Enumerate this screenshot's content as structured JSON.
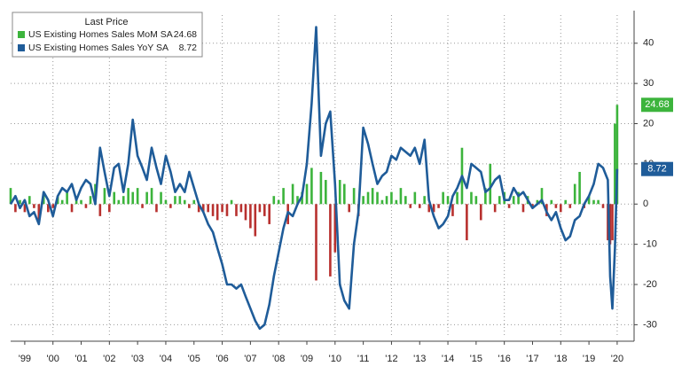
{
  "chart_data": {
    "type": "bar_line",
    "legend_title": "Last Price",
    "x": [
      1999.0,
      1999.17,
      1999.33,
      1999.5,
      1999.67,
      1999.83,
      2000.0,
      2000.17,
      2000.33,
      2000.5,
      2000.67,
      2000.83,
      2001.0,
      2001.17,
      2001.33,
      2001.5,
      2001.67,
      2001.83,
      2002.0,
      2002.17,
      2002.33,
      2002.5,
      2002.67,
      2002.83,
      2003.0,
      2003.17,
      2003.33,
      2003.5,
      2003.67,
      2003.83,
      2004.0,
      2004.17,
      2004.33,
      2004.5,
      2004.67,
      2004.83,
      2005.0,
      2005.17,
      2005.33,
      2005.5,
      2005.67,
      2005.83,
      2006.0,
      2006.17,
      2006.33,
      2006.5,
      2006.67,
      2006.83,
      2007.0,
      2007.17,
      2007.33,
      2007.5,
      2007.67,
      2007.83,
      2008.0,
      2008.17,
      2008.33,
      2008.5,
      2008.67,
      2008.83,
      2009.0,
      2009.17,
      2009.33,
      2009.5,
      2009.67,
      2009.83,
      2010.0,
      2010.17,
      2010.33,
      2010.5,
      2010.67,
      2010.83,
      2011.0,
      2011.17,
      2011.33,
      2011.5,
      2011.67,
      2011.83,
      2012.0,
      2012.17,
      2012.33,
      2012.5,
      2012.67,
      2012.83,
      2013.0,
      2013.17,
      2013.33,
      2013.5,
      2013.67,
      2013.83,
      2014.0,
      2014.17,
      2014.33,
      2014.5,
      2014.67,
      2014.83,
      2015.0,
      2015.17,
      2015.33,
      2015.5,
      2015.67,
      2015.83,
      2016.0,
      2016.17,
      2016.33,
      2016.5,
      2016.67,
      2016.83,
      2017.0,
      2017.17,
      2017.33,
      2017.5,
      2017.67,
      2017.83,
      2018.0,
      2018.17,
      2018.33,
      2018.5,
      2018.67,
      2018.83,
      2019.0,
      2019.17,
      2019.33,
      2019.5,
      2019.67,
      2019.83,
      2020.0,
      2020.17,
      2020.25,
      2020.33,
      2020.42,
      2020.5
    ],
    "series": [
      {
        "name": "US Existing Homes Sales MoM SA",
        "type": "bar",
        "color": "#3cb43c",
        "negative_color": "#b8312f",
        "last_value_label": "24.68",
        "values": [
          4,
          -2,
          1,
          -2,
          2,
          -1,
          -4,
          3,
          -2,
          -1,
          2,
          1,
          3,
          -2,
          2,
          1,
          -1,
          2,
          5,
          -3,
          4,
          -2,
          3,
          1,
          2,
          4,
          3,
          4,
          -1,
          3,
          4,
          -2,
          3,
          1,
          -1,
          2,
          2,
          1,
          -1,
          1,
          -2,
          -2,
          -2,
          -3,
          -4,
          -2,
          -3,
          1,
          -3,
          -2,
          -4,
          -6,
          -8,
          -2,
          -3,
          -5,
          2,
          1,
          4,
          -5,
          5,
          2,
          3,
          5,
          9,
          -19,
          8,
          6,
          -18,
          -12,
          6,
          5,
          -2,
          4,
          -3,
          2,
          3,
          4,
          3,
          1,
          2,
          3,
          1,
          4,
          2,
          -1,
          3,
          -1,
          2,
          -2,
          -2,
          -1,
          3,
          2,
          -3,
          3,
          14,
          -9,
          3,
          2,
          -4,
          4,
          10,
          -2,
          2,
          3,
          -1,
          2,
          3,
          -2,
          2,
          -1,
          1,
          4,
          -3,
          1,
          -1,
          -2,
          1,
          -1,
          5,
          8,
          -1,
          2,
          1,
          1,
          -1,
          -9,
          -10,
          -9,
          20,
          24.68
        ]
      },
      {
        "name": "US Existing Homes Sales YoY SA",
        "type": "line",
        "color": "#1f5c99",
        "last_value_label": "8.72",
        "values": [
          0,
          2,
          -1,
          1,
          -3,
          -2,
          -5,
          3,
          1,
          -3,
          2,
          4,
          3,
          5,
          1,
          4,
          6,
          5,
          0,
          14,
          8,
          2,
          9,
          10,
          3,
          10,
          21,
          12,
          9,
          6,
          14,
          9,
          5,
          12,
          8,
          3,
          5,
          3,
          8,
          4,
          0,
          -2,
          -5,
          -7,
          -11,
          -15,
          -20,
          -20,
          -21,
          -20,
          -23,
          -26,
          -29,
          -31,
          -30,
          -25,
          -18,
          -12,
          -6,
          -2,
          -3,
          0,
          2,
          10,
          25,
          44,
          12,
          20,
          23,
          5,
          -20,
          -24,
          -26,
          -10,
          -2,
          19,
          15,
          10,
          5,
          7,
          8,
          12,
          11,
          14,
          13,
          12,
          14,
          10,
          16,
          1,
          -3,
          -6,
          -5,
          -3,
          2,
          4,
          7,
          4,
          10,
          9,
          8,
          3,
          4,
          6,
          7,
          1,
          1,
          4,
          2,
          3,
          1,
          -1,
          0,
          1,
          -2,
          -4,
          -2,
          -6,
          -9,
          -8,
          -4,
          -3,
          0,
          2,
          5,
          10,
          9,
          6,
          -18,
          -26,
          -11,
          8.72
        ]
      }
    ],
    "xlim": [
      1999,
      2021.1
    ],
    "xticks": [
      {
        "value": 1999.5,
        "label": "'99"
      },
      {
        "value": 2000.5,
        "label": "'00"
      },
      {
        "value": 2001.5,
        "label": "'01"
      },
      {
        "value": 2002.5,
        "label": "'02"
      },
      {
        "value": 2003.5,
        "label": "'03"
      },
      {
        "value": 2004.5,
        "label": "'04"
      },
      {
        "value": 2005.5,
        "label": "'05"
      },
      {
        "value": 2006.5,
        "label": "'06"
      },
      {
        "value": 2007.5,
        "label": "'07"
      },
      {
        "value": 2008.5,
        "label": "'08"
      },
      {
        "value": 2009.5,
        "label": "'09"
      },
      {
        "value": 2010.5,
        "label": "'10"
      },
      {
        "value": 2011.5,
        "label": "'11"
      },
      {
        "value": 2012.5,
        "label": "'12"
      },
      {
        "value": 2013.5,
        "label": "'13"
      },
      {
        "value": 2014.5,
        "label": "'14"
      },
      {
        "value": 2015.5,
        "label": "'15"
      },
      {
        "value": 2016.5,
        "label": "'16"
      },
      {
        "value": 2017.5,
        "label": "'17"
      },
      {
        "value": 2018.5,
        "label": "'18"
      },
      {
        "value": 2019.5,
        "label": "'19"
      },
      {
        "value": 2020.5,
        "label": "'20"
      }
    ],
    "ylim": [
      -33,
      47
    ],
    "yticks": [
      -30,
      -20,
      -10,
      0,
      10,
      20,
      30,
      40
    ],
    "grid": true
  }
}
